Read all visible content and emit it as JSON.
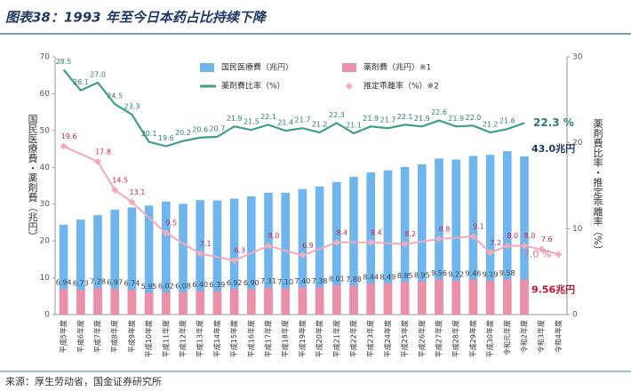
{
  "chart_data": {
    "type": "bar_line",
    "title": "图表38：1993 年至今日本药占比持续下降",
    "source": "来源：厚生劳动省，国金证券研究所",
    "y_label": "国民医療費・薬剤費（兆円）",
    "y2_label": "薬剤費比率・推定乖離率（%）",
    "categories": [
      "平成5年度",
      "平成6年度",
      "平成7年度",
      "平成8年度",
      "平成9年度",
      "平成10年度",
      "平成11年度",
      "平成12年度",
      "平成13年度",
      "平成14年度",
      "平成15年度",
      "平成16年度",
      "平成17年度",
      "平成18年度",
      "平成19年度",
      "平成20年度",
      "平成21年度",
      "平成22年度",
      "平成23年度",
      "平成24年度",
      "平成25年度",
      "平成26年度",
      "平成27年度",
      "平成28年度",
      "平成29年度",
      "平成30年度",
      "令和元年度",
      "令和2年度",
      "令和3年度",
      "令和4年度"
    ],
    "ylim": [
      0,
      70
    ],
    "yticks": [
      0,
      10,
      20,
      30,
      40,
      50,
      60,
      70
    ],
    "y2lim": [
      0,
      30
    ],
    "y2ticks": [
      0,
      10,
      20,
      30
    ],
    "grid": false,
    "series": [
      {
        "name": "国民医療費（兆円）",
        "kind": "bar",
        "color": "#6fb6ee",
        "values": [
          24.4,
          25.8,
          27.0,
          28.5,
          29.1,
          29.6,
          30.7,
          30.1,
          31.1,
          31.0,
          31.5,
          32.1,
          33.1,
          33.1,
          34.1,
          34.8,
          36.0,
          37.4,
          38.6,
          39.2,
          40.1,
          40.8,
          42.4,
          42.1,
          43.1,
          43.4,
          44.4,
          43.0,
          null,
          null
        ],
        "value_labels": [
          null,
          null,
          null,
          null,
          null,
          null,
          null,
          null,
          null,
          null,
          null,
          null,
          null,
          null,
          null,
          null,
          null,
          null,
          null,
          null,
          null,
          null,
          null,
          null,
          null,
          null,
          null,
          "43.0兆円",
          null,
          null
        ]
      },
      {
        "name": "薬剤費（兆円）※1",
        "kind": "bar",
        "color": "#ec8fa9",
        "values": [
          6.94,
          6.73,
          7.28,
          6.97,
          6.74,
          5.95,
          6.02,
          6.08,
          6.4,
          6.39,
          6.92,
          6.9,
          7.31,
          7.1,
          7.4,
          7.38,
          8.01,
          7.88,
          8.44,
          8.49,
          8.85,
          8.95,
          9.56,
          9.22,
          9.46,
          9.19,
          9.58,
          9.56,
          null,
          null
        ],
        "value_labels": [
          "6.94",
          "6.73",
          "7.28",
          "6.97",
          "6.74",
          "5.95",
          "6.02",
          "6.08",
          "6.40",
          "6.39",
          "6.92",
          "6.90",
          "7.31",
          "7.10",
          "7.40",
          "7.38",
          "8.01",
          "7.88",
          "8.44",
          "8.49",
          "8.85",
          "8.95",
          "9.56",
          "9.22",
          "9.46",
          "9.19",
          "9.58",
          "9.56兆円",
          null,
          null
        ]
      },
      {
        "name": "薬剤費比率（%）",
        "kind": "line",
        "axis": "y2",
        "color": "#3e9e8c",
        "values": [
          28.5,
          26.1,
          27.0,
          24.5,
          23.3,
          20.1,
          19.6,
          20.2,
          20.6,
          20.7,
          21.9,
          21.5,
          22.1,
          21.4,
          21.7,
          21.2,
          22.3,
          21.1,
          21.9,
          21.7,
          22.1,
          21.9,
          22.6,
          21.9,
          22.0,
          21.2,
          21.6,
          22.3,
          null,
          null
        ],
        "value_labels": [
          "28.5",
          "26.1",
          "27.0",
          "24.5",
          "23.3",
          "20.1",
          "19.6",
          "20.2",
          "20.6",
          "20.7",
          "21.9",
          "21.5",
          "22.1",
          "21.4",
          "21.7",
          "21.2",
          "22.3",
          "21.1",
          "21.9",
          "21.7",
          "22.1",
          "21.9",
          "22.6",
          "21.9",
          "22.0",
          "21.2",
          "21.6",
          "22.3 %",
          null,
          null
        ]
      },
      {
        "name": "推定乖離率（%）※2",
        "kind": "marker_line",
        "axis": "y2",
        "color": "#f4a9b8",
        "x": [
          "平成5年度",
          "平成7年度",
          "平成8年度",
          "平成9年度",
          "平成11年度",
          "平成13年度",
          "平成15年度",
          "平成17年度",
          "平成19年度",
          "平成21年度",
          "平成23年度",
          "平成25年度",
          "平成27年度",
          "平成29年度",
          "平成30年度",
          "令和元年度",
          "令和2年度",
          "令和3年度",
          "令和4年度"
        ],
        "values": [
          19.6,
          17.8,
          14.5,
          13.1,
          9.5,
          7.1,
          6.3,
          8.0,
          6.9,
          8.4,
          8.4,
          8.2,
          8.8,
          9.1,
          7.2,
          8.0,
          8.0,
          7.6,
          7.0
        ],
        "value_labels": [
          "19.6",
          "17.8",
          "14.5",
          "13.1",
          "9.5",
          "7.1",
          "6.3",
          "8.0",
          "6.9",
          "8.4",
          "8.4",
          "8.2",
          "8.8",
          "9.1",
          "7.2",
          "8.0",
          "8.0",
          "7.6",
          "7.0 %"
        ]
      }
    ]
  }
}
